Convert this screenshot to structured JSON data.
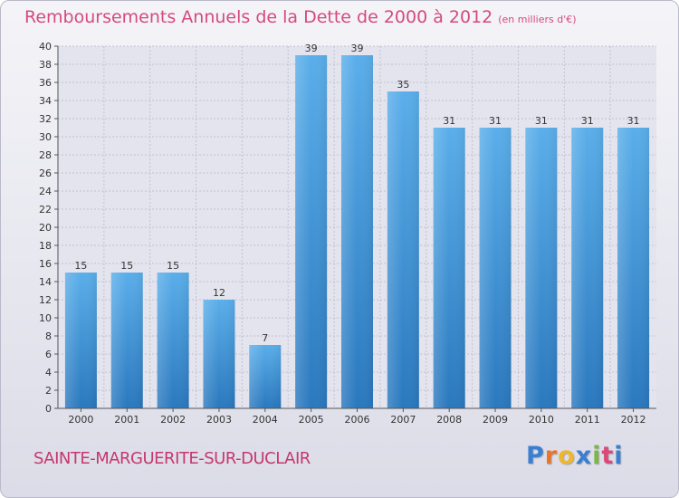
{
  "header": {
    "title": "Remboursements Annuels de la Dette de 2000 à 2012",
    "unit": "(en milliers d'€)"
  },
  "footer": {
    "commune": "SAINTE-MARGUERITE-SUR-DUCLAIR",
    "logo_letters": [
      "P",
      "r",
      "o",
      "x",
      "i",
      "t",
      "i"
    ],
    "logo_colors": [
      "#3a7fd0",
      "#e8762a",
      "#f0b62e",
      "#3a7fd0",
      "#7ab648",
      "#d94a7a",
      "#3a7fd0"
    ]
  },
  "chart_data": {
    "type": "bar",
    "categories": [
      "2000",
      "2001",
      "2002",
      "2003",
      "2004",
      "2005",
      "2006",
      "2007",
      "2008",
      "2009",
      "2010",
      "2011",
      "2012"
    ],
    "values": [
      15,
      15,
      15,
      12,
      7,
      39,
      39,
      35,
      31,
      31,
      31,
      31,
      31
    ],
    "data_labels": [
      "15",
      "15",
      "15",
      "12",
      "7",
      "39",
      "39",
      "35",
      "31",
      "31",
      "31",
      "31",
      "31"
    ],
    "yticks": [
      "0",
      "2",
      "4",
      "6",
      "8",
      "10",
      "12",
      "14",
      "16",
      "18",
      "20",
      "22",
      "24",
      "26",
      "28",
      "30",
      "32",
      "34",
      "36",
      "38",
      "40"
    ],
    "ylim": [
      0,
      40
    ],
    "grid": true,
    "bar_color_top": "#5aaeea",
    "bar_color_bottom": "#2a78be"
  }
}
